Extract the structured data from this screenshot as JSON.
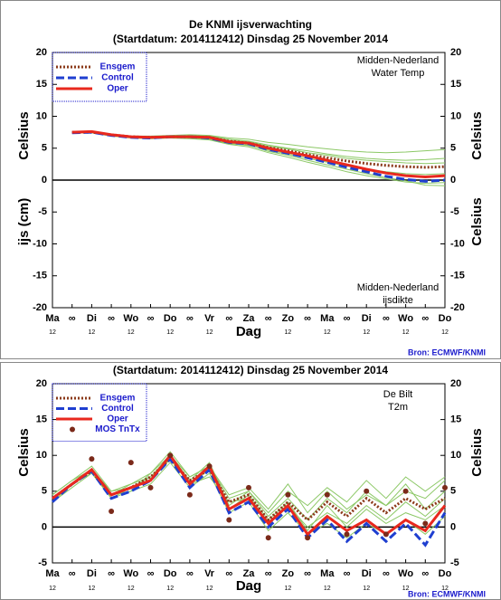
{
  "chart_data": [
    {
      "type": "line",
      "title": "De KNMI ijsverwachting",
      "subtitle": "(Startdatum: 2014112412)   Dinsdag   25 November  2014",
      "ylabel": "Celsius",
      "ylabel_lower": "ijs (cm)",
      "xlabel": "Dag",
      "annotation_top": [
        "Midden-Nederland",
        "Water Temp"
      ],
      "annotation_bottom": [
        "Midden-Nederland",
        "ijsdikte"
      ],
      "source": "Bron: ECMWF/KNMI",
      "categories": [
        "Ma",
        "∞",
        "Di",
        "∞",
        "Wo",
        "∞",
        "Do",
        "∞",
        "Vr",
        "∞",
        "Za",
        "∞",
        "Zo",
        "∞",
        "Ma",
        "∞",
        "Di",
        "∞",
        "Wo",
        "∞",
        "Do"
      ],
      "hour_labels": [
        "12",
        null,
        "12",
        null,
        "12",
        null,
        "12",
        null,
        "12",
        null,
        "12",
        null,
        "12",
        null,
        "12",
        null,
        "12",
        null,
        "12",
        null,
        "12"
      ],
      "ylim": [
        -20,
        20
      ],
      "yticks": [
        -20,
        -15,
        -10,
        -5,
        0,
        5,
        10,
        15,
        20
      ],
      "member_color": "#8cc866",
      "members": [
        [
          null,
          7.5,
          7.6,
          7.2,
          6.9,
          6.9,
          7.0,
          7.1,
          7.0,
          6.6,
          6.4,
          5.9,
          5.6,
          5.2,
          4.9,
          4.6,
          4.4,
          4.3,
          4.4,
          4.6,
          4.8
        ],
        [
          null,
          7.5,
          7.4,
          7.0,
          6.7,
          6.6,
          6.6,
          6.5,
          6.3,
          5.6,
          5.2,
          4.3,
          3.6,
          2.8,
          2.1,
          1.3,
          0.7,
          0.2,
          -0.3,
          -0.5,
          -0.4
        ],
        [
          null,
          7.4,
          7.5,
          7.1,
          6.8,
          6.8,
          6.9,
          7.0,
          6.9,
          6.4,
          6.1,
          5.5,
          5.0,
          4.6,
          4.1,
          3.7,
          3.4,
          3.2,
          3.1,
          3.2,
          3.4
        ],
        [
          null,
          7.5,
          7.5,
          7.0,
          6.7,
          6.6,
          6.7,
          6.7,
          6.5,
          5.8,
          5.4,
          4.7,
          4.1,
          3.4,
          2.8,
          2.2,
          1.7,
          1.3,
          1.0,
          0.9,
          1.0
        ],
        [
          null,
          7.6,
          7.6,
          7.2,
          6.9,
          6.8,
          6.9,
          6.9,
          6.8,
          6.2,
          6.0,
          5.3,
          4.9,
          4.3,
          3.9,
          3.4,
          3.1,
          2.9,
          2.7,
          2.6,
          2.7
        ],
        [
          null,
          7.4,
          7.4,
          6.9,
          6.6,
          6.5,
          6.6,
          6.6,
          6.4,
          5.7,
          5.5,
          4.5,
          3.9,
          3.1,
          2.4,
          1.7,
          1.0,
          0.4,
          -0.1,
          -0.8,
          -0.9
        ]
      ],
      "series": [
        {
          "name": "Ensgem",
          "color": "#8b3a1a",
          "style": "dotted",
          "values": [
            null,
            7.5,
            7.5,
            7.1,
            6.8,
            6.7,
            6.8,
            6.8,
            6.7,
            6.1,
            5.8,
            5.1,
            4.6,
            4.0,
            3.5,
            3.0,
            2.6,
            2.3,
            2.1,
            2.0,
            2.1
          ]
        },
        {
          "name": "Control",
          "color": "#1f3fd0",
          "style": "dashed",
          "values": [
            null,
            7.4,
            7.5,
            7.0,
            6.7,
            6.6,
            6.8,
            6.8,
            6.6,
            5.9,
            5.7,
            4.8,
            4.2,
            3.5,
            2.8,
            2.0,
            1.3,
            0.6,
            0.1,
            -0.2,
            0.0
          ]
        },
        {
          "name": "Oper",
          "color": "#e8281e",
          "style": "solid",
          "values": [
            null,
            7.5,
            7.6,
            7.1,
            6.8,
            6.7,
            6.8,
            6.8,
            6.7,
            6.0,
            5.8,
            5.0,
            4.4,
            3.8,
            3.1,
            2.4,
            1.7,
            1.1,
            0.7,
            0.5,
            0.7
          ]
        }
      ]
    },
    {
      "type": "line",
      "subtitle": "(Startdatum: 2014112412)   Dinsdag   25 November  2014",
      "ylabel": "Celsius",
      "xlabel": "Dag",
      "annotation_top": [
        "De Bilt",
        "T2m"
      ],
      "source": "Bron: ECMWF/KNMI",
      "categories": [
        "Ma",
        "∞",
        "Di",
        "∞",
        "Wo",
        "∞",
        "Do",
        "∞",
        "Vr",
        "∞",
        "Za",
        "∞",
        "Zo",
        "∞",
        "Ma",
        "∞",
        "Di",
        "∞",
        "Wo",
        "∞",
        "Do"
      ],
      "hour_labels": [
        "12",
        null,
        "12",
        null,
        "12",
        null,
        "12",
        null,
        "12",
        null,
        "12",
        null,
        "12",
        null,
        "12",
        null,
        "12",
        null,
        "12",
        null,
        "12"
      ],
      "ylim": [
        -5,
        20
      ],
      "yticks": [
        -5,
        0,
        5,
        10,
        15,
        20
      ],
      "member_color": "#8cc866",
      "members": [
        [
          4.5,
          6.5,
          8.5,
          5,
          6,
          7.5,
          10.5,
          7,
          8.5,
          4,
          5,
          2,
          5,
          3,
          5.5,
          3.5,
          6.5,
          4,
          7,
          5,
          7
        ],
        [
          3.5,
          5.5,
          7.5,
          4,
          5,
          6,
          9,
          5.5,
          7.5,
          2,
          3.5,
          -0.5,
          2,
          -1,
          0.5,
          -1.5,
          0.5,
          -1,
          1,
          -1,
          1.5
        ],
        [
          4,
          6,
          8,
          5,
          5.5,
          7,
          10,
          6.5,
          9,
          3,
          5,
          1.5,
          4,
          1,
          4,
          2,
          5,
          3,
          6,
          2.5,
          5
        ],
        [
          4,
          6,
          7.5,
          4.5,
          6,
          7,
          9.5,
          6,
          7,
          3.5,
          4,
          0.5,
          3,
          0,
          2,
          0.5,
          3,
          1,
          3.5,
          1.5,
          4
        ],
        [
          4.5,
          6.5,
          8,
          4,
          5.5,
          6.5,
          9.5,
          6,
          8,
          2.5,
          4.5,
          1,
          3.5,
          -0.5,
          3,
          0,
          2.5,
          0.5,
          2,
          1,
          3
        ],
        [
          3.5,
          6,
          8,
          4.5,
          5,
          7.5,
          10,
          7,
          8.5,
          4.5,
          5.5,
          2.5,
          6,
          2,
          5,
          2.5,
          4.5,
          3,
          5,
          4,
          6.5
        ]
      ],
      "series": [
        {
          "name": "Ensgem",
          "color": "#8b3a1a",
          "style": "dotted",
          "values": [
            4,
            6,
            7.8,
            4.5,
            5.5,
            7,
            9.5,
            6.5,
            8,
            3.5,
            4.5,
            1,
            3.5,
            1,
            3.5,
            1.5,
            4,
            2,
            4,
            2.5,
            4
          ]
        },
        {
          "name": "Control",
          "color": "#1f3fd0",
          "style": "dashed",
          "values": [
            3.5,
            6,
            7.8,
            4,
            5,
            6.5,
            9.5,
            5.5,
            8,
            2,
            3.5,
            0,
            2.5,
            -1.5,
            1,
            -2,
            0.5,
            -2,
            0.5,
            -2.5,
            2
          ]
        },
        {
          "name": "Oper",
          "color": "#e8281e",
          "style": "solid",
          "values": [
            4,
            6,
            8,
            4.5,
            5.5,
            6.5,
            10,
            6,
            8.5,
            2.5,
            4,
            0.5,
            3,
            -1,
            1.5,
            -0.5,
            1,
            -1,
            1,
            -0.5,
            3
          ]
        },
        {
          "name": "MOS TnTx",
          "color": "#7b2a1a",
          "style": "dots",
          "values": [
            null,
            null,
            9.5,
            2.2,
            9,
            5.5,
            10,
            4.5,
            8.5,
            1,
            5.5,
            -1.5,
            4.5,
            -1.5,
            4.5,
            -1,
            5,
            -1,
            5,
            0.5,
            5.5
          ]
        }
      ]
    }
  ]
}
